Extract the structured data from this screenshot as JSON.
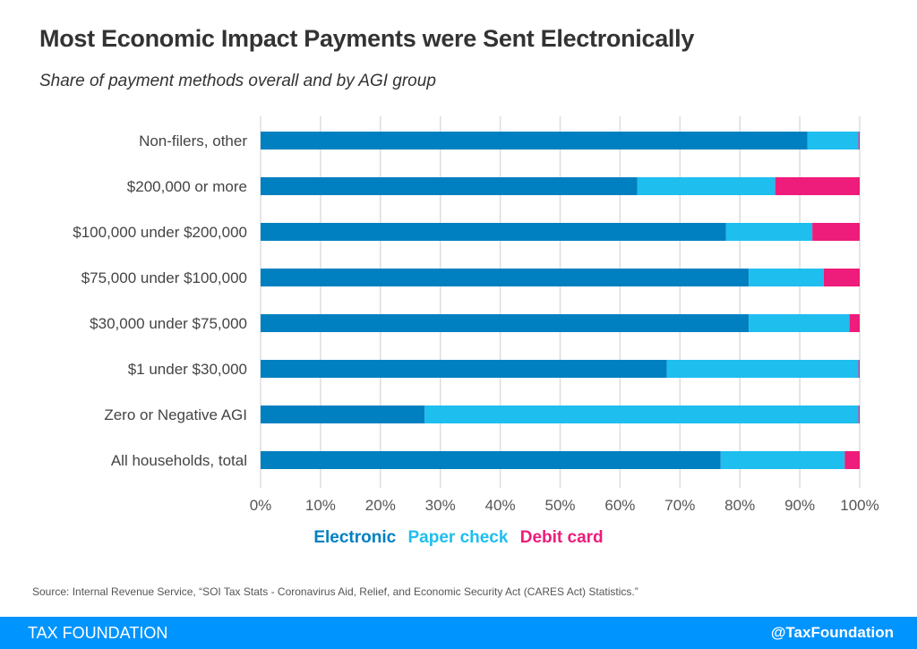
{
  "chart_data": {
    "type": "bar",
    "orientation": "horizontal",
    "stacked": true,
    "title": "Most Economic Impact Payments were Sent Electronically",
    "subtitle": "Share of payment methods overall and by AGI group",
    "categories": [
      "Non-filers, other",
      "$200,000 or more",
      "$100,000 under $200,000",
      "$75,000 under $100,000",
      "$30,000 under $75,000",
      "$1 under $30,000",
      "Zero or Negative AGI",
      "All households, total"
    ],
    "series": [
      {
        "name": "Electronic",
        "color": "#0080c0",
        "values": [
          91.3,
          62.9,
          77.7,
          81.5,
          81.5,
          67.8,
          27.4,
          76.8
        ]
      },
      {
        "name": "Paper check",
        "color": "#1ebeef",
        "values": [
          8.5,
          23.0,
          14.4,
          12.5,
          16.8,
          32.0,
          72.4,
          20.7
        ]
      },
      {
        "name": "Debit card",
        "color": "#ee1c7a",
        "values": [
          0.2,
          14.1,
          7.9,
          6.0,
          1.7,
          0.2,
          0.2,
          2.5
        ]
      }
    ],
    "xlim": [
      0,
      100
    ],
    "xticks": [
      "0%",
      "10%",
      "20%",
      "30%",
      "40%",
      "50%",
      "60%",
      "70%",
      "80%",
      "90%",
      "100%"
    ],
    "grid": true,
    "legend": "bottom"
  },
  "source": "Source: Internal Revenue Service, “SOI Tax Stats - Coronavirus Aid, Relief, and Economic Security Act (CARES Act) Statistics.”",
  "footer": {
    "left": "TAX FOUNDATION",
    "right": "@TaxFoundation"
  }
}
